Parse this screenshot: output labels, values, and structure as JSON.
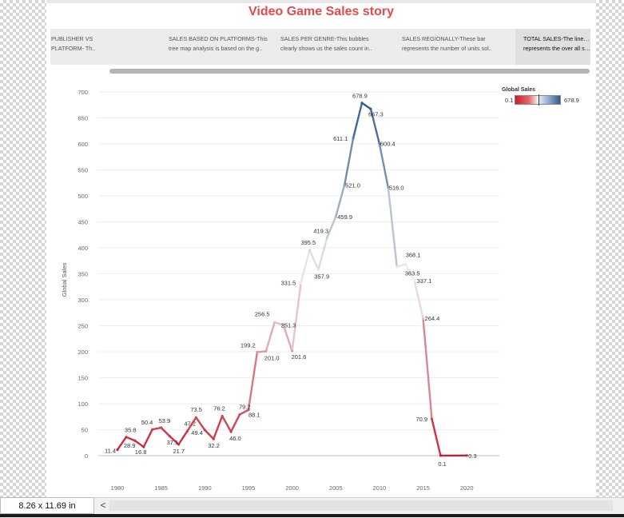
{
  "story": {
    "title": "Video Game Sales story",
    "points": [
      {
        "line1": "PUBLISHER VS",
        "line2": "PLATFORM- Th.."
      },
      {
        "line1": "SALES BASED ON PLATFORMS-This",
        "line2": "tree map analysis is based on the g.."
      },
      {
        "line1": "SALES PER GENRE-This bubbles",
        "line2": "clearly shows us the sales count in.."
      },
      {
        "line1": "SALES REGIONALLY-These bar",
        "line2": "represents the number of units sol.."
      },
      {
        "line1": "TOTAL SALES-The line graph here",
        "line2": "represents the over all sales of vid.."
      }
    ],
    "active_index": 4
  },
  "legend": {
    "title": "Global Sales",
    "min_label": "0.1",
    "max_label": "678.9"
  },
  "statusbar": {
    "page_size": "8.26 x 11.69 in",
    "scroll_left_glyph": "<"
  },
  "chart_data": {
    "type": "line",
    "ylabel": "Global Sales",
    "xlabel": "",
    "xlim": [
      1976.5,
      2024.5
    ],
    "ylim": [
      -20,
      705
    ],
    "xticks": [
      1980,
      1985,
      1990,
      1995,
      2000,
      2005,
      2010,
      2015,
      2020
    ],
    "yticks": [
      0,
      50,
      100,
      150,
      200,
      250,
      300,
      350,
      400,
      450,
      500,
      550,
      600,
      650,
      700
    ],
    "grid": true,
    "color_scale": {
      "min": 0.1,
      "max": 678.9,
      "low": "#c81d2f",
      "mid": "#f1f1f1",
      "high": "#2f5b8c"
    },
    "points": [
      {
        "x": 1980,
        "y": 11.4,
        "label": "11.4"
      },
      {
        "x": 1981,
        "y": 35.8,
        "label": "35.8"
      },
      {
        "x": 1982,
        "y": 28.9,
        "label": "28.9"
      },
      {
        "x": 1983,
        "y": 16.8,
        "label": "16.8"
      },
      {
        "x": 1984,
        "y": 50.4,
        "label": "50.4"
      },
      {
        "x": 1985,
        "y": 53.9,
        "label": "53.9"
      },
      {
        "x": 1986,
        "y": 37.1,
        "label": "37.1"
      },
      {
        "x": 1987,
        "y": 21.7,
        "label": "21.7"
      },
      {
        "x": 1988,
        "y": 47.2,
        "label": "47.2"
      },
      {
        "x": 1989,
        "y": 73.5,
        "label": "73.5"
      },
      {
        "x": 1990,
        "y": 49.4,
        "label": "49.4"
      },
      {
        "x": 1991,
        "y": 32.2,
        "label": "32.2"
      },
      {
        "x": 1992,
        "y": 76.2,
        "label": "76.2"
      },
      {
        "x": 1993,
        "y": 46.0,
        "label": "46.0"
      },
      {
        "x": 1994,
        "y": 79.2,
        "label": "79.2"
      },
      {
        "x": 1995,
        "y": 88.1,
        "label": "88.1"
      },
      {
        "x": 1996,
        "y": 199.2,
        "label": "199.2"
      },
      {
        "x": 1997,
        "y": 201.0,
        "label": "201.0"
      },
      {
        "x": 1998,
        "y": 256.5,
        "label": "256.5"
      },
      {
        "x": 1999,
        "y": 251.3,
        "label": "251.3"
      },
      {
        "x": 2000,
        "y": 201.6,
        "label": "201.6"
      },
      {
        "x": 2001,
        "y": 331.5,
        "label": "331.5"
      },
      {
        "x": 2002,
        "y": 395.5,
        "label": "395.5"
      },
      {
        "x": 2003,
        "y": 357.9,
        "label": "357.9"
      },
      {
        "x": 2004,
        "y": 419.3,
        "label": "419.3"
      },
      {
        "x": 2005,
        "y": 459.9,
        "label": "459.9"
      },
      {
        "x": 2006,
        "y": 521.0,
        "label": "521.0"
      },
      {
        "x": 2007,
        "y": 611.1,
        "label": "611.1"
      },
      {
        "x": 2008,
        "y": 678.9,
        "label": "678.9"
      },
      {
        "x": 2009,
        "y": 667.3,
        "label": "667.3"
      },
      {
        "x": 2010,
        "y": 600.4,
        "label": "600.4"
      },
      {
        "x": 2011,
        "y": 516.0,
        "label": "516.0"
      },
      {
        "x": 2012,
        "y": 363.5,
        "label": "363.5"
      },
      {
        "x": 2013,
        "y": 368.1,
        "label": "368.1"
      },
      {
        "x": 2014,
        "y": 337.1,
        "label": "337.1"
      },
      {
        "x": 2015,
        "y": 264.4,
        "label": "264.4"
      },
      {
        "x": 2016,
        "y": 70.9,
        "label": "70.9"
      },
      {
        "x": 2017,
        "y": 0.1,
        "label": "0.1"
      },
      {
        "x": 2020,
        "y": 0.3,
        "label": "0.3"
      }
    ]
  }
}
